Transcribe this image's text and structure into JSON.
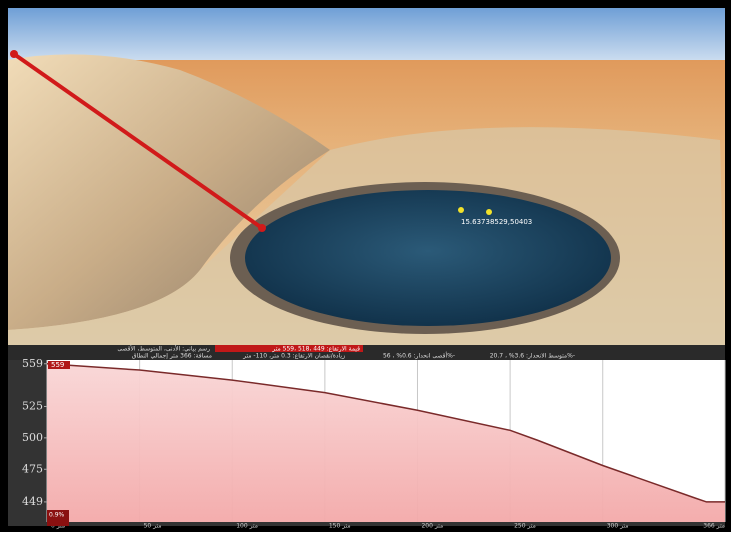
{
  "scene": {
    "placemark": "15.63738529,50403"
  },
  "stats": {
    "elevation": "قيمة الارتفاع: 449 ،518 ،559 متر",
    "graph": "رسم بياني: الأدنى، المتوسط، الأقصى",
    "distance": "مسافة: 366 متر إجمالي النطاق",
    "gain": "زيادة/نقصان الارتفاع: 0.3 متر، 110- متر",
    "max_slope": "أقصى انحدار: 0.6% ، 56%-",
    "avg_slope": "متوسط الانحدار: 3.6% ، 20.7%-"
  },
  "chart_data": {
    "type": "area",
    "color": "#f6b8b8",
    "line_color": "#7a2a2a",
    "x": [
      0,
      50,
      100,
      150,
      200,
      250,
      265,
      300,
      350,
      356,
      366
    ],
    "values": [
      559,
      554,
      546,
      536,
      522,
      506,
      498,
      478,
      452,
      449,
      449
    ],
    "xlim": [
      0,
      366
    ],
    "ylim": [
      433,
      562
    ],
    "yticks": [
      559,
      525,
      500,
      475,
      449
    ],
    "xticks": [
      {
        "value": 0,
        "label": "0 متر"
      },
      {
        "value": 50,
        "label": "50 متر"
      },
      {
        "value": 100,
        "label": "100 متر"
      },
      {
        "value": 150,
        "label": "150 متر"
      },
      {
        "value": 200,
        "label": "200 متر"
      },
      {
        "value": 250,
        "label": "250 متر"
      },
      {
        "value": 300,
        "label": "300 متر"
      },
      {
        "value": 366,
        "label": "366 متر"
      }
    ],
    "slope_label": "0.9%",
    "grid": true
  }
}
